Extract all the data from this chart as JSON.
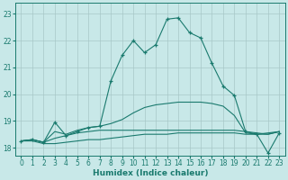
{
  "xlabel": "Humidex (Indice chaleur)",
  "ylabel": "",
  "xlim": [
    -0.5,
    23.5
  ],
  "ylim": [
    17.7,
    23.4
  ],
  "xticks": [
    0,
    1,
    2,
    3,
    4,
    5,
    6,
    7,
    8,
    9,
    10,
    11,
    12,
    13,
    14,
    15,
    16,
    17,
    18,
    19,
    20,
    21,
    22,
    23
  ],
  "yticks": [
    18,
    19,
    20,
    21,
    22,
    23
  ],
  "background_color": "#c8e8e8",
  "grid_color": "#a8c8c8",
  "line_color": "#1a7a6e",
  "lines": [
    {
      "x": [
        0,
        1,
        2,
        3,
        4,
        5,
        6,
        7,
        8,
        9,
        10,
        11,
        12,
        13,
        14,
        15,
        16,
        17,
        18,
        19,
        20,
        21,
        22,
        23
      ],
      "y": [
        18.25,
        18.25,
        18.15,
        18.15,
        18.2,
        18.25,
        18.3,
        18.3,
        18.35,
        18.4,
        18.45,
        18.5,
        18.5,
        18.5,
        18.55,
        18.55,
        18.55,
        18.55,
        18.55,
        18.55,
        18.5,
        18.5,
        18.5,
        18.6
      ],
      "has_markers": false
    },
    {
      "x": [
        0,
        1,
        2,
        3,
        4,
        5,
        6,
        7,
        8,
        9,
        10,
        11,
        12,
        13,
        14,
        15,
        16,
        17,
        18,
        19,
        20,
        21,
        22,
        23
      ],
      "y": [
        18.25,
        18.3,
        18.2,
        18.35,
        18.45,
        18.55,
        18.6,
        18.65,
        18.65,
        18.65,
        18.65,
        18.65,
        18.65,
        18.65,
        18.65,
        18.65,
        18.65,
        18.65,
        18.65,
        18.65,
        18.6,
        18.55,
        18.5,
        18.6
      ],
      "has_markers": false
    },
    {
      "x": [
        0,
        1,
        2,
        3,
        4,
        5,
        6,
        7,
        8,
        9,
        10,
        11,
        12,
        13,
        14,
        15,
        16,
        17,
        18,
        19,
        20,
        21,
        22,
        23
      ],
      "y": [
        18.25,
        18.3,
        18.2,
        18.6,
        18.5,
        18.65,
        18.75,
        18.8,
        18.9,
        19.05,
        19.3,
        19.5,
        19.6,
        19.65,
        19.7,
        19.7,
        19.7,
        19.65,
        19.55,
        19.2,
        18.55,
        18.5,
        18.55,
        18.6
      ],
      "has_markers": false
    },
    {
      "x": [
        0,
        1,
        2,
        3,
        4,
        5,
        6,
        7,
        8,
        9,
        10,
        11,
        12,
        13,
        14,
        15,
        16,
        17,
        18,
        19,
        20,
        21,
        22,
        23
      ],
      "y": [
        18.25,
        18.3,
        18.2,
        18.95,
        18.45,
        18.6,
        18.75,
        18.8,
        20.5,
        21.45,
        22.0,
        21.55,
        21.85,
        22.8,
        22.85,
        22.3,
        22.1,
        21.15,
        20.3,
        19.95,
        18.6,
        18.5,
        17.8,
        18.55
      ],
      "has_markers": true
    }
  ]
}
